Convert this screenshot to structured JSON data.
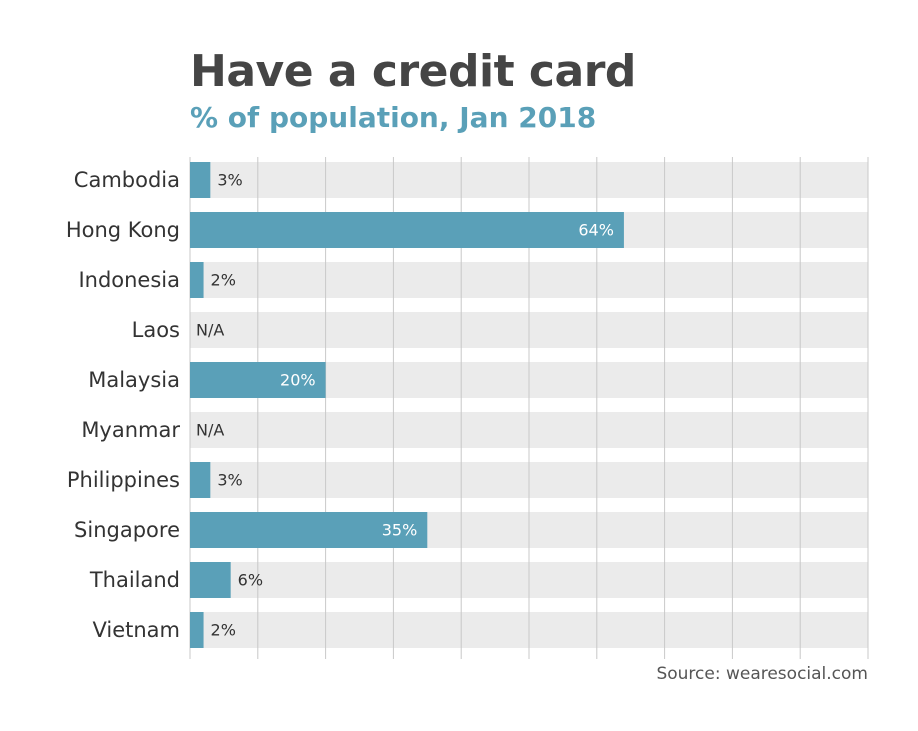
{
  "chart_data": {
    "type": "bar",
    "orientation": "horizontal",
    "title": "Have a credit card",
    "subtitle": "% of population, Jan 2018",
    "categories": [
      "Cambodia",
      "Hong Kong",
      "Indonesia",
      "Laos",
      "Malaysia",
      "Myanmar",
      "Philippines",
      "Singapore",
      "Thailand",
      "Vietnam"
    ],
    "values": [
      3,
      64,
      2,
      null,
      20,
      null,
      3,
      35,
      6,
      2
    ],
    "data_labels": [
      "3%",
      "64%",
      "2%",
      "N/A",
      "20%",
      "N/A",
      "3%",
      "35%",
      "6%",
      "2%"
    ],
    "xlim": [
      0,
      100
    ],
    "grid": true,
    "source": "Source: wearesocial.com",
    "colors": {
      "bar": "#5aa0b8",
      "track": "#ebebeb",
      "grid": "#c8c8c8",
      "label_dark": "#333333",
      "label_light": "#ffffff",
      "title": "#454545",
      "subtitle": "#5aa0b8"
    }
  }
}
